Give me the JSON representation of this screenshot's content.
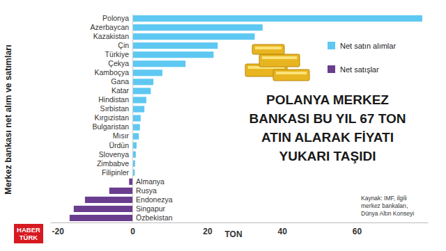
{
  "chart_data": {
    "type": "bar",
    "orientation": "horizontal",
    "title": "POLANYA MERKEZ\nBANKASI BU YIL 67 TON\nATIN ALARAK FİYATI\nYUKARI TAŞIDI",
    "y_label": "Merkez bankası net alım ve satımları",
    "x_label": "TON",
    "source": [
      "Kaynak: IMF, ilgili",
      "merkez bankaları,",
      "Dünya Altın Konseyi"
    ],
    "logo": [
      "HABER",
      "TÜRK"
    ],
    "categories": [
      "Polonya",
      "Azerbaycan",
      "Kazakistan",
      "Çin",
      "Türkiye",
      "Çekya",
      "Kamboçya",
      "Gana",
      "Katar",
      "Hindistan",
      "Sırbistan",
      "Kırgızistan",
      "Bulgaristan",
      "Mısır",
      "Ürdün",
      "Slovenya",
      "Zimbabve",
      "Filipinler",
      "Almanya",
      "Rusya",
      "Endonezya",
      "Singapur",
      "Özbekistan"
    ],
    "series": [
      {
        "name": "Net satın alımlar",
        "color": "#5ec8f2",
        "values": [
          77.5,
          34.8,
          32.7,
          22.8,
          21.7,
          14.2,
          8.0,
          5.6,
          4.9,
          3.7,
          3.2,
          2.2,
          2.0,
          1.7,
          1.1,
          0.9,
          0.7,
          0.6,
          null,
          null,
          null,
          null,
          null
        ]
      },
      {
        "name": "Net satışlar",
        "color": "#6a3d8f",
        "values": [
          null,
          null,
          null,
          null,
          null,
          null,
          null,
          null,
          null,
          null,
          null,
          null,
          null,
          null,
          null,
          null,
          null,
          null,
          -0.9,
          -6.2,
          -12.7,
          -15.7,
          -16.8
        ]
      }
    ],
    "xlim": [
      -22,
      79
    ],
    "xticks": [
      -20,
      0,
      20,
      40,
      60
    ],
    "grid": false,
    "legend": "upper right"
  }
}
